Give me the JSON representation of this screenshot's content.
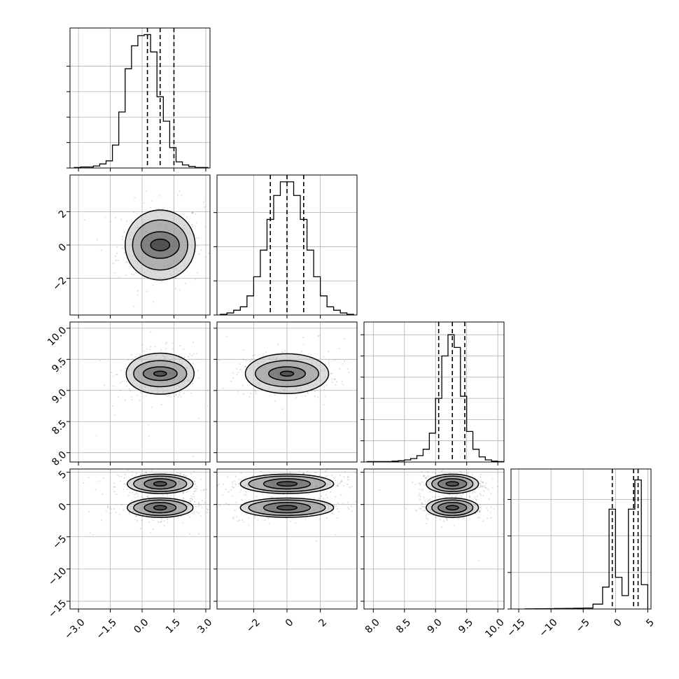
{
  "chart_data": {
    "type": "corner",
    "grid": true,
    "variables": [
      {
        "range": [
          -3.4,
          3.2
        ],
        "ticks": [
          -3.0,
          -1.5,
          0.0,
          1.5,
          3.0
        ],
        "tick_labels": [
          "−3.0",
          "−1.5",
          "0.0",
          "1.5",
          "3.0"
        ],
        "quantiles": [
          0.25,
          0.85,
          1.5
        ],
        "histogram": {
          "edges": [
            -3.2,
            -2.9,
            -2.6,
            -2.3,
            -2.0,
            -1.7,
            -1.4,
            -1.1,
            -0.8,
            -0.5,
            -0.2,
            0.1,
            0.4,
            0.7,
            1.0,
            1.3,
            1.6,
            1.9,
            2.2,
            2.5,
            2.8,
            3.1
          ],
          "counts": [
            1,
            2,
            2,
            4,
            8,
            14,
            45,
            110,
            195,
            240,
            260,
            262,
            228,
            140,
            92,
            40,
            12,
            6,
            3,
            1,
            1
          ]
        },
        "y_ticks": [
          0,
          50,
          100,
          150,
          200
        ],
        "y_max": 275
      },
      {
        "range": [
          -4.2,
          4.2
        ],
        "ticks": [
          -2,
          0,
          2
        ],
        "tick_labels": [
          "−2",
          "0",
          "2"
        ],
        "quantiles": [
          -1.0,
          0.0,
          1.0
        ],
        "histogram": {
          "edges": [
            -4.0,
            -3.6,
            -3.2,
            -2.8,
            -2.4,
            -2.0,
            -1.6,
            -1.2,
            -0.8,
            -0.4,
            0.0,
            0.4,
            0.8,
            1.2,
            1.6,
            2.0,
            2.4,
            2.8,
            3.2,
            3.6,
            4.0
          ],
          "counts": [
            1,
            3,
            7,
            12,
            28,
            56,
            95,
            140,
            175,
            195,
            195,
            175,
            140,
            95,
            56,
            28,
            12,
            7,
            3,
            1
          ]
        },
        "y_ticks": [
          0,
          50,
          100,
          150
        ],
        "y_max": 205
      },
      {
        "range": [
          7.85,
          10.1
        ],
        "ticks": [
          8.0,
          8.5,
          9.0,
          9.5,
          10.0
        ],
        "tick_labels": [
          "8.0",
          "8.5",
          "9.0",
          "9.5",
          "10.0"
        ],
        "quantiles": [
          9.05,
          9.27,
          9.47
        ],
        "histogram": {
          "edges": [
            7.9,
            8.0,
            8.1,
            8.2,
            8.3,
            8.4,
            8.5,
            8.6,
            8.7,
            8.8,
            8.9,
            9.0,
            9.1,
            9.2,
            9.3,
            9.4,
            9.5,
            9.6,
            9.7,
            9.8,
            9.9,
            10.0,
            10.1
          ],
          "counts": [
            1,
            1,
            1,
            1,
            2,
            3,
            5,
            8,
            15,
            30,
            68,
            150,
            250,
            300,
            270,
            155,
            72,
            30,
            12,
            5,
            2,
            1
          ]
        },
        "y_ticks": [
          0,
          50,
          100,
          150,
          200,
          250,
          300
        ],
        "y_max": 330
      },
      {
        "range": [
          -16.2,
          5.5
        ],
        "ticks": [
          -15,
          -10,
          -5,
          0,
          5
        ],
        "tick_labels": [
          "−15",
          "−10",
          "−5",
          "0",
          "5"
        ],
        "quantiles": [
          -0.5,
          2.8,
          3.5
        ],
        "histogram": {
          "edges": [
            -14.0,
            -12.5,
            -11.0,
            -9.5,
            -8.0,
            -6.5,
            -5.0,
            -3.5,
            -2.0,
            -1.0,
            0.0,
            1.0,
            2.0,
            3.0,
            4.0,
            5.0
          ],
          "counts": [
            1,
            2,
            3,
            4,
            5,
            6,
            8,
            40,
            180,
            820,
            260,
            110,
            820,
            1060,
            200
          ]
        },
        "y_ticks": [
          0,
          300,
          600,
          900
        ],
        "y_max": 1150
      }
    ],
    "pairs": [
      {
        "row": 1,
        "col": 0,
        "centers": [
          [
            0.85,
            0.0
          ]
        ],
        "radii": [
          [
            0.45,
            0.35
          ],
          [
            0.9,
            0.8
          ],
          [
            1.3,
            1.5
          ],
          [
            1.65,
            2.1
          ]
        ]
      },
      {
        "row": 2,
        "col": 0,
        "centers": [
          [
            0.85,
            9.27
          ]
        ],
        "radii": [
          [
            0.3,
            0.04
          ],
          [
            0.8,
            0.11
          ],
          [
            1.25,
            0.21
          ],
          [
            1.6,
            0.33
          ]
        ]
      },
      {
        "row": 2,
        "col": 1,
        "centers": [
          [
            0.0,
            9.27
          ]
        ],
        "radii": [
          [
            0.4,
            0.04
          ],
          [
            1.1,
            0.11
          ],
          [
            1.9,
            0.21
          ],
          [
            2.5,
            0.32
          ]
        ]
      },
      {
        "row": 3,
        "col": 0,
        "centers": [
          [
            0.85,
            3.2
          ],
          [
            0.85,
            -0.5
          ]
        ],
        "radii": [
          [
            0.3,
            0.35
          ],
          [
            0.75,
            0.8
          ],
          [
            1.25,
            1.2
          ],
          [
            1.55,
            1.5
          ]
        ]
      },
      {
        "row": 3,
        "col": 1,
        "centers": [
          [
            0.0,
            3.2
          ],
          [
            0.0,
            -0.5
          ]
        ],
        "radii": [
          [
            0.6,
            0.35
          ],
          [
            1.4,
            0.8
          ],
          [
            2.3,
            1.2
          ],
          [
            2.8,
            1.5
          ]
        ]
      },
      {
        "row": 3,
        "col": 2,
        "centers": [
          [
            9.27,
            3.2
          ],
          [
            9.27,
            -0.5
          ]
        ],
        "radii": [
          [
            0.1,
            0.35
          ],
          [
            0.23,
            0.8
          ],
          [
            0.33,
            1.2
          ],
          [
            0.42,
            1.5
          ]
        ]
      }
    ]
  }
}
